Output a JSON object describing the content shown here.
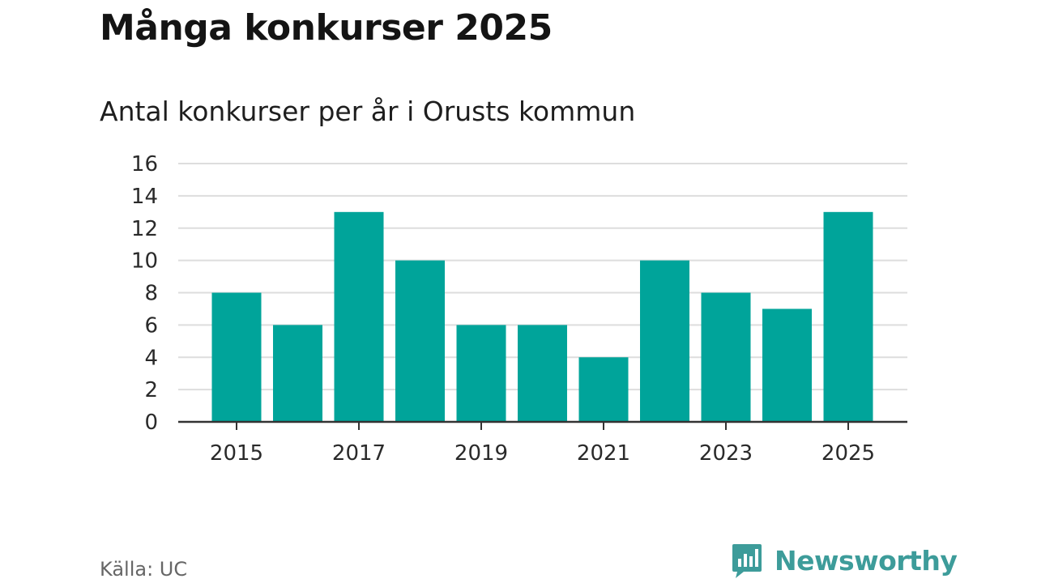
{
  "header": {
    "title": "Många konkurser 2025",
    "subtitle": "Antal konkurser per år i Orusts kommun"
  },
  "footer": {
    "source": "Källa: UC",
    "brand": "Newsworthy",
    "brand_icon": "bar-chart-speech-bubble-icon"
  },
  "colors": {
    "bar": "#00A49A",
    "grid": "#dddddd",
    "axis": "#333333",
    "brand": "#3d9c9a"
  },
  "chart_data": {
    "type": "bar",
    "title": "Antal konkurser per år i Orusts kommun",
    "categories": [
      "2015",
      "2016",
      "2017",
      "2018",
      "2019",
      "2020",
      "2021",
      "2022",
      "2023",
      "2024",
      "2025"
    ],
    "values": [
      8,
      6,
      13,
      10,
      6,
      6,
      4,
      10,
      8,
      7,
      13
    ],
    "x_tick_labels": [
      "2015",
      "2017",
      "2019",
      "2021",
      "2023",
      "2025"
    ],
    "y_ticks": [
      0,
      2,
      4,
      6,
      8,
      10,
      12,
      14,
      16
    ],
    "ylim": [
      0,
      16
    ],
    "xlabel": "",
    "ylabel": "",
    "grid": true,
    "legend": "none"
  }
}
